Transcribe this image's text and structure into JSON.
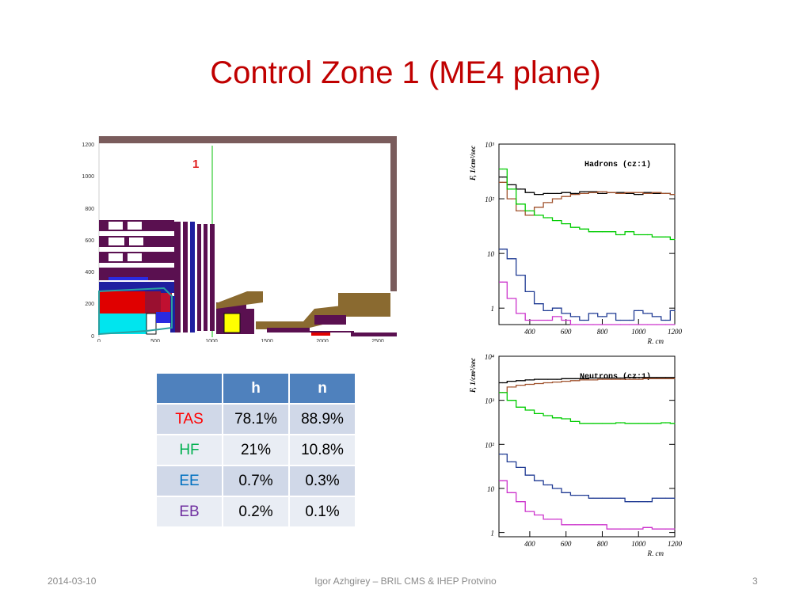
{
  "slide": {
    "title": "Control Zone 1 (ME4 plane)",
    "footer_date": "2014-03-10",
    "footer_author": "Igor Azhgirey – BRIL CMS & IHEP Protvino",
    "footer_page": "3"
  },
  "diagram": {
    "zone_label": "1",
    "y_ticks": [
      "1200",
      "1000",
      "800",
      "600",
      "400",
      "200",
      "0"
    ],
    "x_ticks": [
      "0",
      "500",
      "1000",
      "1500",
      "2000",
      "2500"
    ]
  },
  "table": {
    "headers": [
      "",
      "h",
      "n"
    ],
    "rows": [
      {
        "label": "TAS",
        "h": "78.1%",
        "n": "88.9%",
        "color": "#ff0000"
      },
      {
        "label": "HF",
        "h": "21%",
        "n": "10.8%",
        "color": "#00b050"
      },
      {
        "label": "EE",
        "h": "0.7%",
        "n": "0.3%",
        "color": "#0070c0"
      },
      {
        "label": "EB",
        "h": "0.2%",
        "n": "0.1%",
        "color": "#7030a0"
      }
    ]
  },
  "chart_data": [
    {
      "type": "line",
      "title": "Hadrons (cz:1)",
      "xlabel": "R, cm",
      "ylabel": "F, 1/cm²/sec",
      "log_y": true,
      "xlim": [
        230,
        1200
      ],
      "ylim": [
        0.5,
        1000
      ],
      "x_ticks": [
        400,
        600,
        800,
        1000,
        1200
      ],
      "y_tick_labels": [
        "10³",
        "10²",
        "10",
        "1"
      ],
      "y_tick_values": [
        1000,
        100,
        10,
        1
      ],
      "x": [
        250,
        300,
        350,
        400,
        450,
        500,
        550,
        600,
        650,
        700,
        750,
        800,
        850,
        900,
        950,
        1000,
        1050,
        1100,
        1150,
        1200
      ],
      "series": [
        {
          "color": "#000000",
          "values": [
            250,
            180,
            150,
            130,
            120,
            125,
            125,
            130,
            125,
            135,
            135,
            125,
            130,
            130,
            125,
            120,
            130,
            125,
            125,
            120
          ]
        },
        {
          "color": "#a0522d",
          "values": [
            200,
            100,
            60,
            50,
            70,
            85,
            100,
            110,
            120,
            125,
            130,
            135,
            130,
            125,
            130,
            130,
            125,
            130,
            125,
            120
          ]
        },
        {
          "color": "#00cc00",
          "values": [
            350,
            150,
            80,
            60,
            50,
            45,
            40,
            35,
            30,
            28,
            25,
            25,
            25,
            22,
            25,
            22,
            22,
            20,
            20,
            18
          ]
        },
        {
          "color": "#1f3a93",
          "values": [
            12,
            8,
            4,
            2,
            1.2,
            0.9,
            1,
            0.8,
            0.7,
            0.6,
            0.8,
            0.7,
            0.8,
            0.6,
            0.6,
            0.9,
            0.8,
            0.7,
            0.6,
            0.9
          ]
        },
        {
          "color": "#cc33cc",
          "values": [
            3,
            1.5,
            0.8,
            0.6,
            0.6,
            0.6,
            0.7,
            0.6,
            0.5,
            0.5,
            0.5,
            0.5,
            0.5,
            0.5,
            0.5,
            0.5,
            0.5,
            0.5,
            0.5,
            0.5
          ]
        }
      ]
    },
    {
      "type": "line",
      "title": "Neutrons (cz:1)",
      "xlabel": "R, cm",
      "ylabel": "F, 1/cm²/sec",
      "log_y": true,
      "xlim": [
        230,
        1200
      ],
      "ylim": [
        0.8,
        10000
      ],
      "x_ticks": [
        400,
        600,
        800,
        1000,
        1200
      ],
      "y_tick_labels": [
        "10⁴",
        "10³",
        "10²",
        "10",
        "1"
      ],
      "y_tick_values": [
        10000,
        1000,
        100,
        10,
        1
      ],
      "x": [
        250,
        300,
        350,
        400,
        450,
        500,
        550,
        600,
        650,
        700,
        750,
        800,
        850,
        900,
        950,
        1000,
        1050,
        1100,
        1150,
        1200
      ],
      "series": [
        {
          "color": "#000000",
          "values": [
            2500,
            2700,
            2800,
            2900,
            3000,
            3000,
            3000,
            3100,
            3100,
            3100,
            3200,
            3200,
            3200,
            3200,
            3300,
            3300,
            3300,
            3300,
            3300,
            3300
          ]
        },
        {
          "color": "#a0522d",
          "values": [
            1500,
            2000,
            2200,
            2300,
            2400,
            2500,
            2600,
            2700,
            2800,
            2900,
            2900,
            3000,
            3000,
            3000,
            3000,
            3000,
            3100,
            3100,
            3100,
            3100
          ]
        },
        {
          "color": "#00cc00",
          "values": [
            1500,
            1000,
            700,
            600,
            500,
            450,
            400,
            380,
            330,
            300,
            300,
            300,
            300,
            310,
            300,
            300,
            300,
            300,
            310,
            300
          ]
        },
        {
          "color": "#1f3a93",
          "values": [
            60,
            40,
            30,
            20,
            15,
            12,
            10,
            8,
            7,
            7,
            6,
            6,
            6,
            6,
            5,
            5,
            5,
            6,
            6,
            6
          ]
        },
        {
          "color": "#cc33cc",
          "values": [
            15,
            8,
            5,
            3,
            2.5,
            2,
            2,
            1.5,
            1.5,
            1.5,
            1.5,
            1.5,
            1.2,
            1.2,
            1.2,
            1.2,
            1.3,
            1.2,
            1.2,
            1.2
          ]
        }
      ]
    }
  ]
}
